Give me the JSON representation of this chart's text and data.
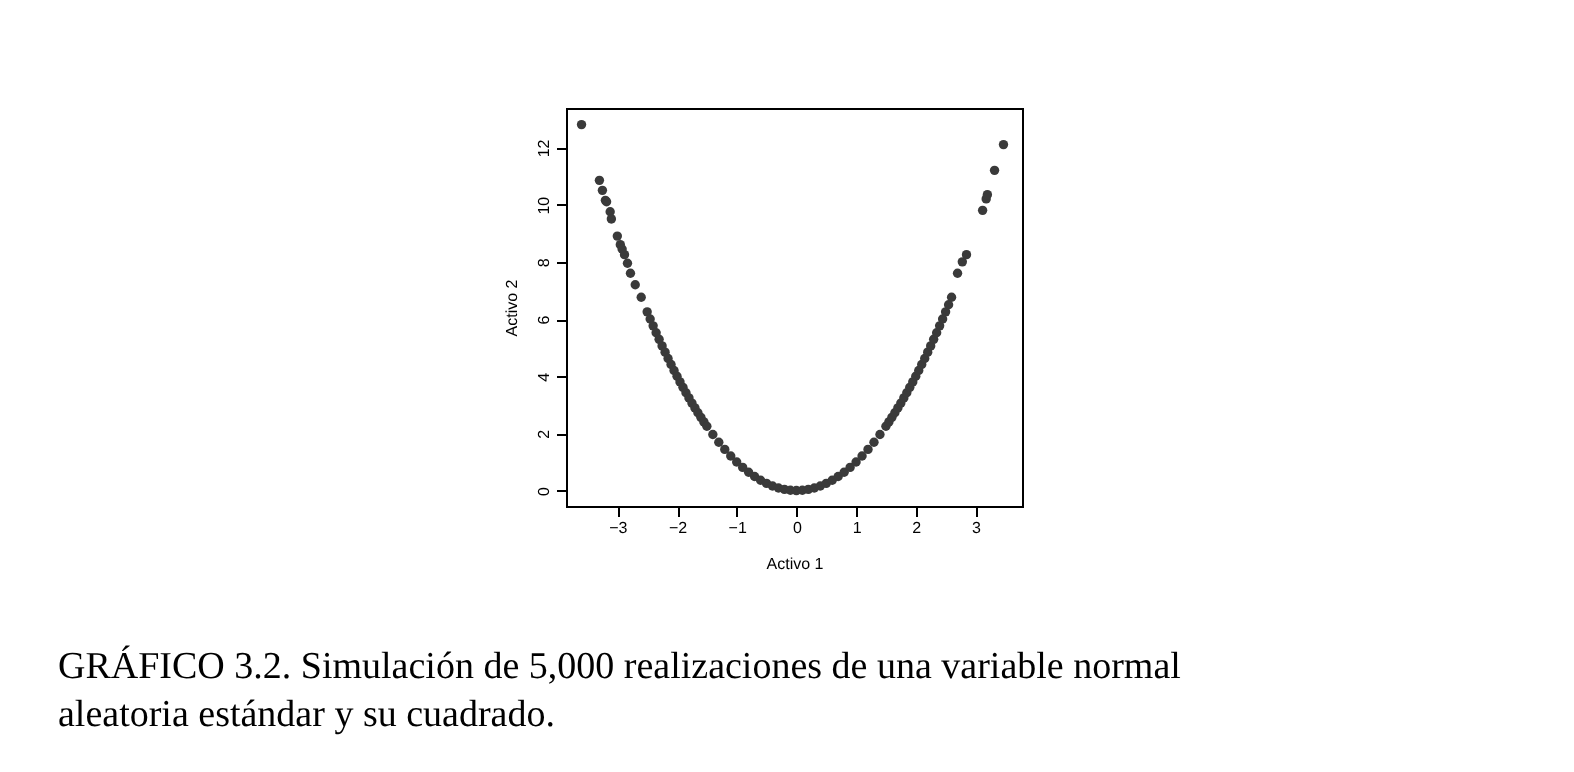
{
  "chart_data": {
    "type": "scatter",
    "xlabel": "Activo 1",
    "ylabel": "Activo 2",
    "annotations": [
      "GRÁFICO 3.2.  Simulación de 5,000 realizaciones de una variable normal",
      "aleatoria estándar y su cuadrado."
    ],
    "x": [
      -3.6,
      -3.3,
      -3.25,
      -3.2,
      -3.18,
      -3.12,
      -3.1,
      -3.0,
      -2.95,
      -2.92,
      -2.88,
      -2.83,
      -2.78,
      -2.7,
      -2.6,
      -2.5,
      -2.45,
      -2.4,
      -2.35,
      -2.3,
      -2.25,
      -2.2,
      -2.15,
      -2.1,
      -2.05,
      -2.0,
      -1.95,
      -1.9,
      -1.85,
      -1.8,
      -1.75,
      -1.7,
      -1.65,
      -1.6,
      -1.55,
      -1.5,
      -1.4,
      -1.3,
      -1.2,
      -1.1,
      -1.0,
      -0.9,
      -0.8,
      -0.7,
      -0.6,
      -0.5,
      -0.4,
      -0.3,
      -0.2,
      -0.1,
      0.0,
      0.1,
      0.2,
      0.3,
      0.4,
      0.5,
      0.6,
      0.7,
      0.8,
      0.9,
      1.0,
      1.1,
      1.2,
      1.3,
      1.4,
      1.5,
      1.55,
      1.6,
      1.65,
      1.7,
      1.75,
      1.8,
      1.85,
      1.9,
      1.95,
      2.0,
      2.05,
      2.1,
      2.15,
      2.2,
      2.25,
      2.3,
      2.35,
      2.4,
      2.45,
      2.5,
      2.55,
      2.6,
      2.7,
      2.78,
      2.85,
      3.12,
      3.18,
      3.2,
      3.32,
      3.47
    ],
    "series": [
      {
        "color": "#3a3a3a",
        "values": [
          12.8,
          10.85,
          10.5,
          10.15,
          10.1,
          9.75,
          9.5,
          8.9,
          8.6,
          8.45,
          8.25,
          7.95,
          7.6,
          7.2,
          6.76,
          6.25,
          6.0,
          5.76,
          5.52,
          5.29,
          5.06,
          4.84,
          4.62,
          4.41,
          4.2,
          4.0,
          3.8,
          3.61,
          3.42,
          3.24,
          3.06,
          2.89,
          2.72,
          2.56,
          2.4,
          2.25,
          1.96,
          1.69,
          1.44,
          1.21,
          1.0,
          0.81,
          0.64,
          0.49,
          0.36,
          0.25,
          0.16,
          0.09,
          0.04,
          0.01,
          0.0,
          0.01,
          0.04,
          0.09,
          0.16,
          0.25,
          0.36,
          0.49,
          0.64,
          0.81,
          1.0,
          1.21,
          1.44,
          1.69,
          1.96,
          2.25,
          2.4,
          2.56,
          2.72,
          2.89,
          3.06,
          3.24,
          3.42,
          3.61,
          3.8,
          4.0,
          4.2,
          4.41,
          4.62,
          4.84,
          5.06,
          5.29,
          5.52,
          5.76,
          6.0,
          6.25,
          6.5,
          6.76,
          7.6,
          8.0,
          8.25,
          9.8,
          10.2,
          10.35,
          11.2,
          12.1
        ]
      }
    ],
    "xlim": [
      -3.86,
      3.78
    ],
    "ylim": [
      -0.54,
      13.38
    ],
    "xticks": [
      -3,
      -2,
      -1,
      0,
      1,
      2,
      3
    ],
    "yticks": [
      0,
      2,
      4,
      6,
      8,
      10,
      12
    ],
    "grid": false
  }
}
